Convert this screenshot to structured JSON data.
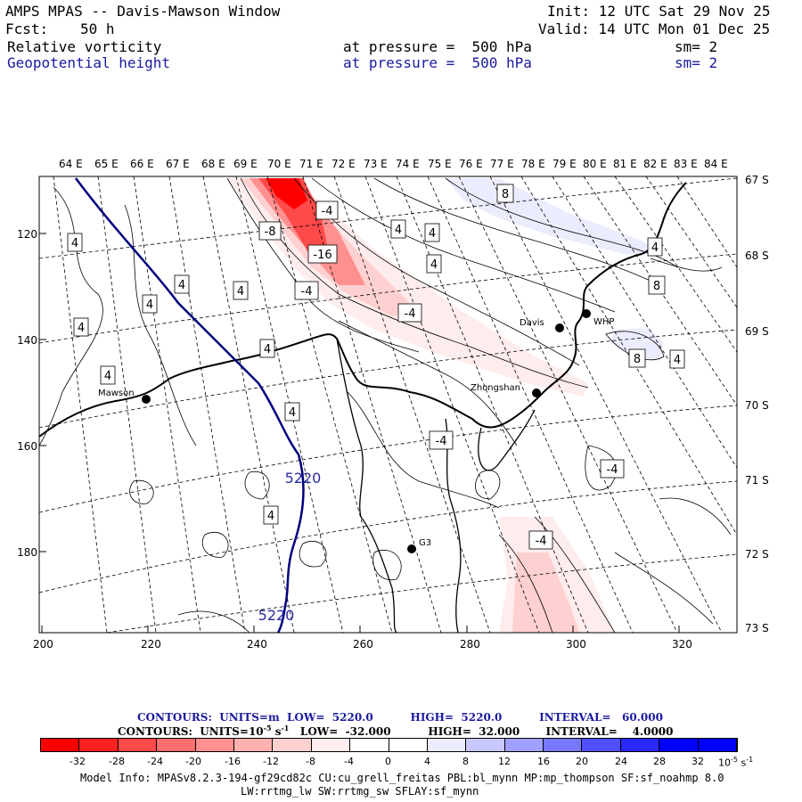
{
  "header": {
    "title": "AMPS MPAS -- Davis-Mawson Window",
    "fcst_label": "Fcst:",
    "fcst_value": "50 h",
    "init": "Init: 12 UTC Sat 29 Nov 25",
    "valid": "Valid: 14 UTC Mon 01 Dec 25",
    "fields": [
      {
        "name": "Relative vorticity",
        "pressure": "at pressure =  500 hPa",
        "sm": "sm= 2"
      },
      {
        "name": "Geopotential height",
        "pressure": "at pressure =  500 hPa",
        "sm": "sm= 2"
      }
    ]
  },
  "axes": {
    "top_lon": [
      "64 E",
      "65 E",
      "66 E",
      "67 E",
      "68 E",
      "69 E",
      "70 E",
      "71 E",
      "72 E",
      "73 E",
      "74 E",
      "75 E",
      "76 E",
      "77 E",
      "78 E",
      "79 E",
      "80 E",
      "81 E",
      "82 E",
      "83 E",
      "84 E"
    ],
    "right_lat": [
      "67 S",
      "68 S",
      "69 S",
      "70 S",
      "71 S",
      "72 S",
      "73 S"
    ],
    "left_y": [
      "120",
      "140",
      "160",
      "180"
    ],
    "bottom_x": [
      "200",
      "220",
      "240",
      "260",
      "280",
      "300",
      "320"
    ]
  },
  "stations": [
    {
      "name": "Mawson"
    },
    {
      "name": "Davis"
    },
    {
      "name": "WHP"
    },
    {
      "name": "Zhongshan"
    },
    {
      "name": "G3"
    }
  ],
  "contour_labels": [
    {
      "text": "8"
    },
    {
      "text": "-4"
    },
    {
      "text": "-8"
    },
    {
      "text": "4"
    },
    {
      "text": "4"
    },
    {
      "text": "-16"
    },
    {
      "text": "4"
    },
    {
      "text": "4"
    },
    {
      "text": "-4"
    },
    {
      "text": "4"
    },
    {
      "text": "4"
    },
    {
      "text": "-4"
    },
    {
      "text": "4"
    },
    {
      "text": "4"
    },
    {
      "text": "8"
    },
    {
      "text": "4"
    },
    {
      "text": "8"
    },
    {
      "text": "4"
    },
    {
      "text": "4"
    },
    {
      "text": "4"
    },
    {
      "text": "-4"
    },
    {
      "text": "-4"
    },
    {
      "text": "4"
    },
    {
      "text": "-4"
    },
    {
      "text": "4"
    }
  ],
  "height_labels": [
    "5220",
    "5220"
  ],
  "contour_info": {
    "line1": "CONTOURS:  UNITS=m  LOW=  5220.0          HIGH=  5220.0          INTERVAL=   60.000",
    "line2_a": "CONTOURS:  UNITS=10",
    "line2_exp": "-5",
    "line2_b": " s",
    "line2_exp2": "-1",
    "line2_c": "   LOW=  -32.000          HIGH=  32.000       INTERVAL=    4.0000"
  },
  "colorbar": {
    "colors": [
      "#ff0000",
      "#ff2020",
      "#ff4a4a",
      "#ff6e6e",
      "#ff9090",
      "#ffb0b0",
      "#ffd0d0",
      "#ffecec",
      "#ffffff",
      "#ffffff",
      "#ececff",
      "#c8c8ff",
      "#a0a0ff",
      "#7878ff",
      "#5050ff",
      "#2828ff",
      "#0000ff",
      "#0000ff"
    ],
    "ticks": [
      "-32",
      "-28",
      "-24",
      "-20",
      "-16",
      "-12",
      "-8",
      "-4",
      "0",
      "4",
      "8",
      "12",
      "16",
      "20",
      "24",
      "28",
      "32"
    ],
    "units": "10",
    "units_exp": "-5",
    "units_s": "s",
    "units_exp2": "-1"
  },
  "model_info": {
    "line1": "Model Info: MPASv8.2.3-194-gf29cd82c CU:cu_grell_freitas PBL:bl_mynn MP:mp_thompson SF:sf_noahmp 8.0",
    "line2": "LW:rrtmg_lw SW:rrtmg_sw SFLAY:sf_mynn"
  }
}
